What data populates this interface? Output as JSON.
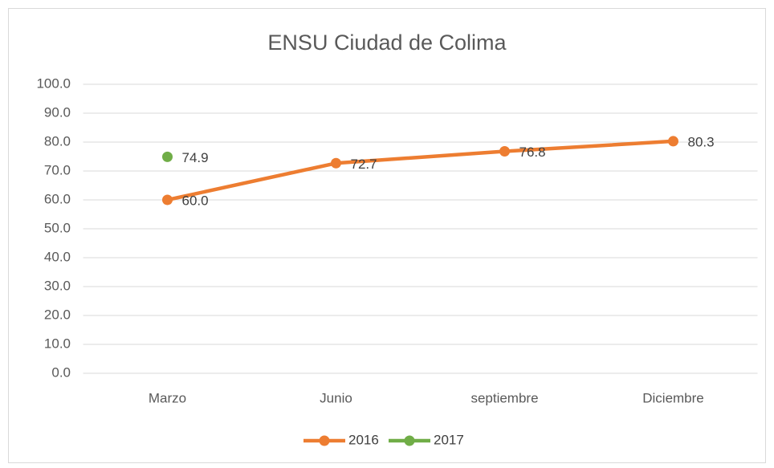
{
  "chart_data": {
    "type": "line",
    "title": "ENSU Ciudad de Colima",
    "categories": [
      "Marzo",
      "Junio",
      "septiembre",
      "Diciembre"
    ],
    "series": [
      {
        "name": "2016",
        "color": "#ed7d31",
        "values": [
          60.0,
          72.7,
          76.8,
          80.3
        ],
        "value_labels": [
          "60.0",
          "72.7",
          "76.8",
          "80.3"
        ]
      },
      {
        "name": "2017",
        "color": "#70ad47",
        "values": [
          74.9,
          null,
          null,
          null
        ],
        "value_labels": [
          "74.9",
          null,
          null,
          null
        ]
      }
    ],
    "ylim": [
      0,
      100
    ],
    "yticks": [
      {
        "value": 0,
        "label": "0.0"
      },
      {
        "value": 10,
        "label": "10.0"
      },
      {
        "value": 20,
        "label": "20.0"
      },
      {
        "value": 30,
        "label": "30.0"
      },
      {
        "value": 40,
        "label": "40.0"
      },
      {
        "value": 50,
        "label": "50.0"
      },
      {
        "value": 60,
        "label": "60.0"
      },
      {
        "value": 70,
        "label": "70.0"
      },
      {
        "value": 80,
        "label": "80.0"
      },
      {
        "value": 90,
        "label": "90.0"
      },
      {
        "value": 100,
        "label": "100.0"
      }
    ],
    "grid": true,
    "legend": "bottom"
  }
}
